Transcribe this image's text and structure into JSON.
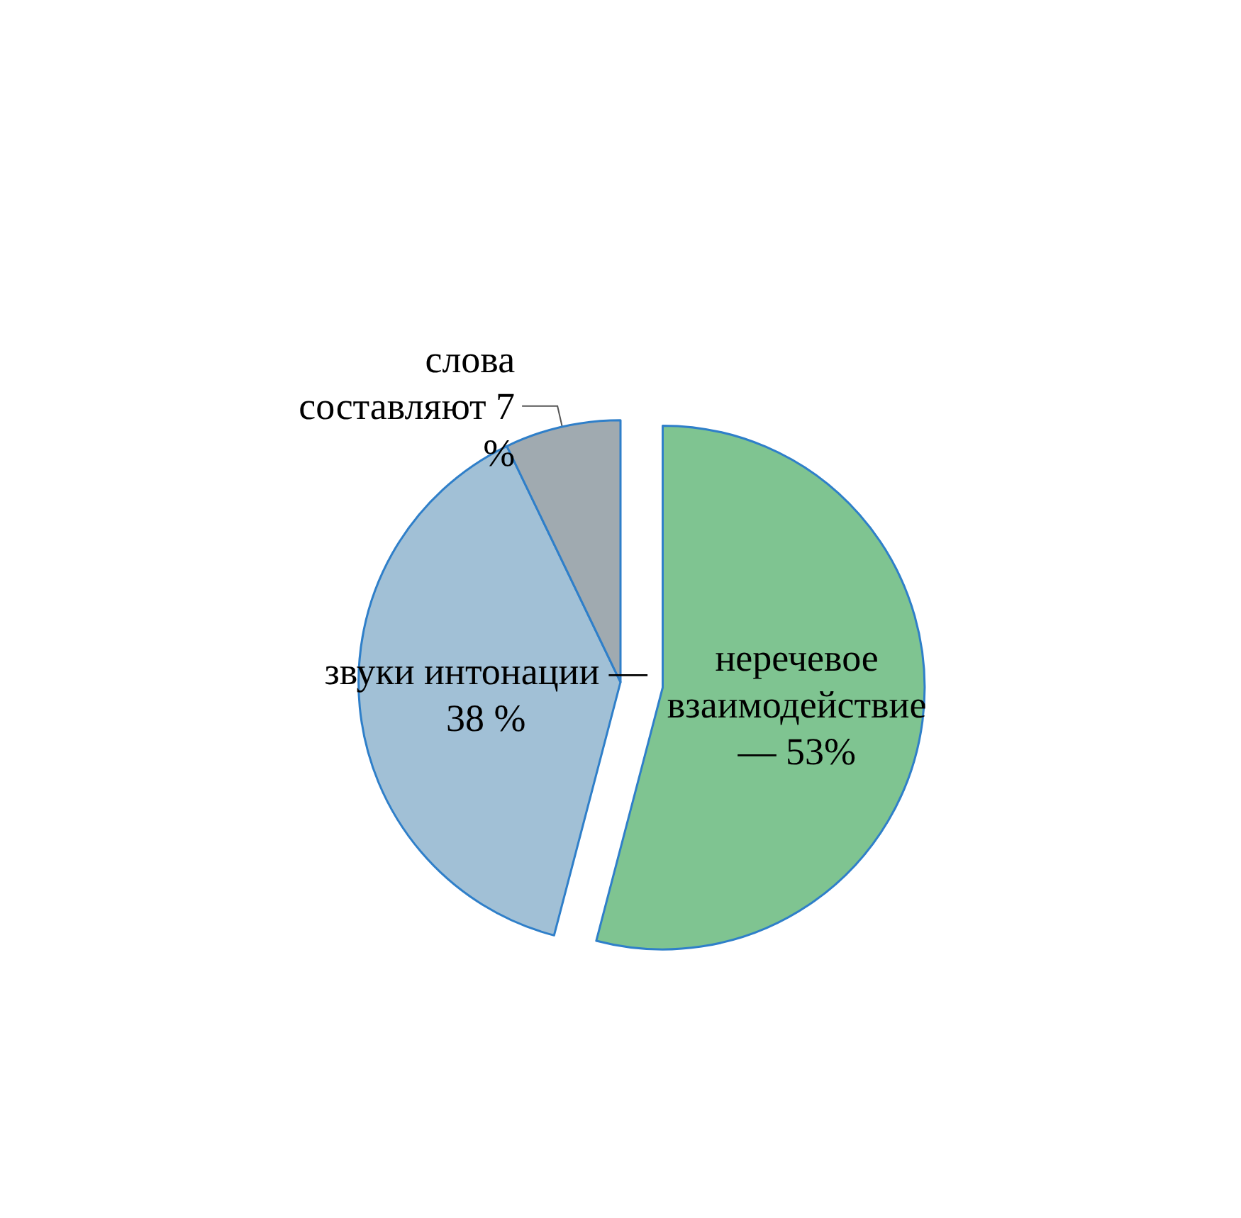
{
  "chart_data": {
    "type": "pie",
    "categories": [
      "неречевое\nвзаимодействие\n— 53%",
      "звуки интонации —\n38 %",
      "слова\nсоставляют 7\n%"
    ],
    "values": [
      53,
      38,
      7
    ],
    "colors": [
      "#7fc491",
      "#a1c0d6",
      "#a0aab0"
    ],
    "legend": false
  }
}
